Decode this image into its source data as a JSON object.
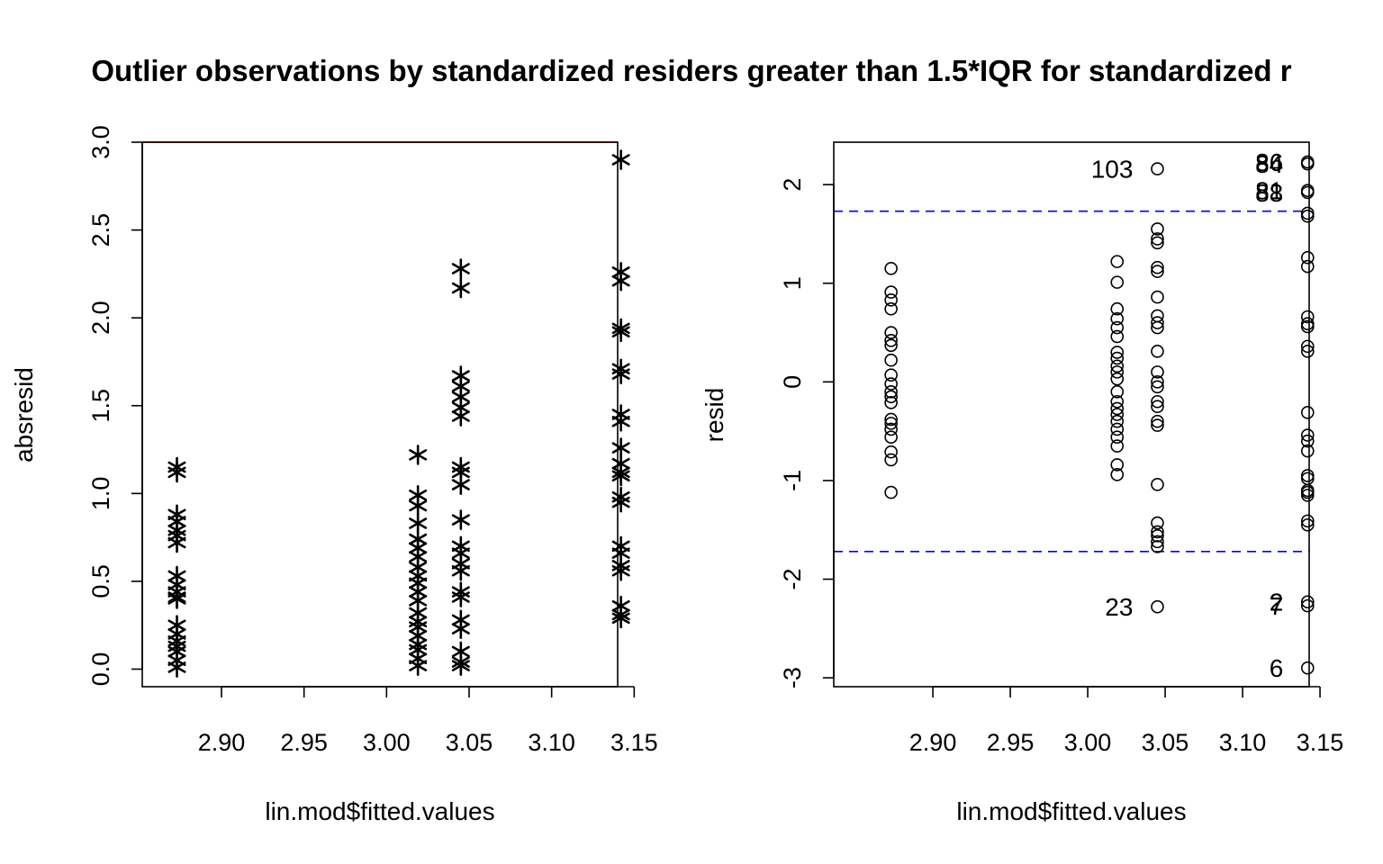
{
  "title": "Outlier observations by standardized residers greater than 1.5*IQR for standardized r",
  "colors": {
    "refline": "#ff0000",
    "iqrline": "#0000ff",
    "points": "#000000"
  },
  "chart_data": [
    {
      "type": "scatter",
      "marker": "asterisk",
      "xlabel": "lin.mod$fitted.values",
      "ylabel": "absresid",
      "xlim": [
        2.852,
        3.14
      ],
      "ylim": [
        -0.1,
        3.0
      ],
      "xticks": [
        "2.90",
        "2.95",
        "3.00",
        "3.05",
        "3.10",
        "3.15"
      ],
      "yticks": [
        "0.0",
        "0.5",
        "1.0",
        "1.5",
        "2.0",
        "2.5",
        "3.0"
      ],
      "hline": {
        "y": 3.0,
        "color": "#ff0000"
      },
      "groups": [
        {
          "x": 2.873,
          "y": [
            1.15,
            1.12,
            0.88,
            0.84,
            0.79,
            0.76,
            0.72,
            0.53,
            0.48,
            0.44,
            0.41,
            0.4,
            0.25,
            0.2,
            0.16,
            0.13,
            0.1,
            0.05,
            0.01
          ]
        },
        {
          "x": 3.019,
          "y": [
            1.22,
            0.99,
            0.93,
            0.83,
            0.74,
            0.69,
            0.64,
            0.58,
            0.53,
            0.49,
            0.44,
            0.39,
            0.32,
            0.27,
            0.24,
            0.19,
            0.14,
            0.11,
            0.06,
            0.02
          ]
        },
        {
          "x": 3.045,
          "y": [
            2.28,
            2.17,
            1.67,
            1.61,
            1.55,
            1.49,
            1.44,
            1.15,
            1.12,
            1.05,
            0.85,
            0.7,
            0.66,
            0.6,
            0.56,
            0.44,
            0.41,
            0.28,
            0.23,
            0.1,
            0.04,
            0.02
          ]
        },
        {
          "x": 3.142,
          "y": [
            2.9,
            2.26,
            2.21,
            1.94,
            1.92,
            1.71,
            1.68,
            1.45,
            1.41,
            1.26,
            1.17,
            1.12,
            1.1,
            0.98,
            0.95,
            0.7,
            0.66,
            0.59,
            0.56,
            0.36,
            0.31,
            0.29
          ]
        }
      ]
    },
    {
      "type": "scatter",
      "marker": "open-circle",
      "xlabel": "lin.mod$fitted.values",
      "ylabel": "resid",
      "xlim": [
        2.836,
        3.143
      ],
      "ylim": [
        -3.09,
        2.43
      ],
      "xticks": [
        "2.90",
        "2.95",
        "3.00",
        "3.05",
        "3.10",
        "3.15"
      ],
      "yticks": [
        "-3",
        "-2",
        "-1",
        "0",
        "1",
        "2"
      ],
      "hlines": [
        {
          "y": 1.73,
          "color": "#0000ff",
          "style": "dashed"
        },
        {
          "y": -1.72,
          "color": "#0000ff",
          "style": "dashed"
        }
      ],
      "groups": [
        {
          "x": 2.873,
          "y": [
            1.15,
            0.91,
            0.83,
            0.74,
            0.5,
            0.42,
            0.37,
            0.22,
            0.07,
            -0.02,
            -0.1,
            -0.15,
            -0.21,
            -0.38,
            -0.42,
            -0.48,
            -0.56,
            -0.71,
            -0.79,
            -1.12
          ]
        },
        {
          "x": 3.019,
          "y": [
            1.22,
            1.01,
            0.74,
            0.64,
            0.55,
            0.46,
            0.3,
            0.24,
            0.16,
            0.1,
            0.03,
            -0.1,
            -0.2,
            -0.27,
            -0.33,
            -0.4,
            -0.48,
            -0.56,
            -0.65,
            -0.84,
            -0.94
          ]
        },
        {
          "x": 3.045,
          "y": [
            2.16,
            1.55,
            1.45,
            1.41,
            1.16,
            1.12,
            0.86,
            0.67,
            0.6,
            0.55,
            0.31,
            0.1,
            0.0,
            -0.05,
            -0.2,
            -0.25,
            -0.4,
            -0.44,
            -1.04,
            -1.43,
            -1.52,
            -1.56,
            -1.62,
            -1.67,
            -2.28
          ]
        },
        {
          "x": 3.142,
          "y": [
            2.23,
            2.21,
            1.94,
            1.92,
            1.71,
            1.68,
            1.26,
            1.17,
            0.66,
            0.59,
            0.56,
            0.36,
            0.31,
            -0.31,
            -0.54,
            -0.6,
            -0.7,
            -0.95,
            -0.98,
            -1.1,
            -1.12,
            -1.15,
            -1.41,
            -1.45,
            -2.23,
            -2.27,
            -2.9
          ]
        }
      ],
      "point_labels": [
        {
          "text": "103",
          "x": 3.045,
          "y": 2.16,
          "anchor": "left"
        },
        {
          "text": "86",
          "x": 3.142,
          "y": 2.23,
          "anchor": "left"
        },
        {
          "text": "84",
          "x": 3.142,
          "y": 2.21,
          "anchor": "left"
        },
        {
          "text": "81",
          "x": 3.142,
          "y": 1.94,
          "anchor": "left"
        },
        {
          "text": "88",
          "x": 3.142,
          "y": 1.92,
          "anchor": "left"
        },
        {
          "text": "23",
          "x": 3.045,
          "y": -2.28,
          "anchor": "left"
        },
        {
          "text": "2",
          "x": 3.142,
          "y": -2.23,
          "anchor": "left"
        },
        {
          "text": "7",
          "x": 3.142,
          "y": -2.27,
          "anchor": "left"
        },
        {
          "text": "6",
          "x": 3.142,
          "y": -2.9,
          "anchor": "left"
        }
      ]
    }
  ]
}
